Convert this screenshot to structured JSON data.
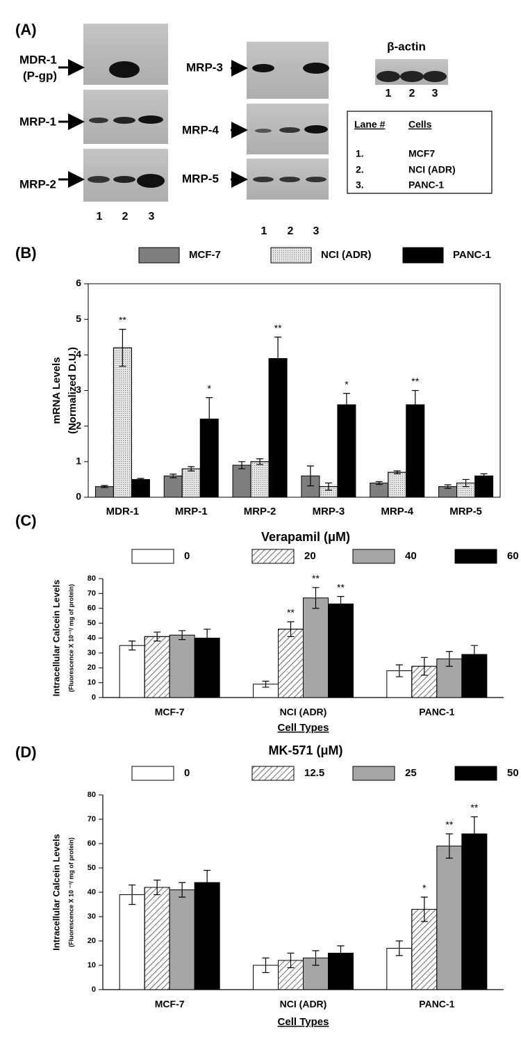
{
  "gel": {
    "panel_label": "(A)",
    "genes": [
      {
        "label": "MDR-1",
        "sublabel": "(P-gp)"
      },
      {
        "label": "MRP-1"
      },
      {
        "label": "MRP-2"
      },
      {
        "label": "MRP-3"
      },
      {
        "label": "MRP-4"
      },
      {
        "label": "MRP-5"
      }
    ],
    "lanes": [
      "1",
      "2",
      "3"
    ],
    "loading_control": "β-actin",
    "legend": {
      "headers": [
        "Lane #",
        "Cells"
      ],
      "rows": [
        [
          "1.",
          "MCF7"
        ],
        [
          "2.",
          "NCI (ADR)"
        ],
        [
          "3.",
          "PANC-1"
        ]
      ]
    }
  },
  "chart_data": [
    {
      "type": "bar",
      "panel_label": "(B)",
      "ylabel": [
        "mRNA Levels",
        "(Normalized  D.U.)"
      ],
      "categories": [
        "MDR-1",
        "MRP-1",
        "MRP-2",
        "MRP-3",
        "MRP-4",
        "MRP-5"
      ],
      "series": [
        {
          "name": "MCF-7",
          "color": "#7f7f7f",
          "values": [
            0.3,
            0.6,
            0.9,
            0.6,
            0.4,
            0.3
          ],
          "errors": [
            0.03,
            0.05,
            0.1,
            0.28,
            0.04,
            0.05
          ],
          "significance": [
            null,
            null,
            null,
            null,
            null,
            null
          ]
        },
        {
          "name": "NCI (ADR)",
          "color": "#e4e4e4",
          "pattern": "dots",
          "values": [
            4.2,
            0.8,
            1.0,
            0.3,
            0.7,
            0.4
          ],
          "errors": [
            0.52,
            0.06,
            0.08,
            0.1,
            0.04,
            0.1
          ],
          "significance": [
            "**",
            null,
            null,
            null,
            null,
            null
          ]
        },
        {
          "name": "PANC-1",
          "color": "#000000",
          "values": [
            0.5,
            2.2,
            3.9,
            2.6,
            2.6,
            0.6
          ],
          "errors": [
            0.03,
            0.6,
            0.6,
            0.32,
            0.4,
            0.06
          ],
          "significance": [
            null,
            "*",
            "**",
            "*",
            "**",
            null
          ]
        }
      ],
      "ylim": [
        0,
        6
      ],
      "yticks": [
        0,
        1,
        2,
        3,
        4,
        5,
        6
      ],
      "frame": true
    },
    {
      "type": "bar",
      "panel_label": "(C)",
      "legend_title": "Verapamil  (μM)",
      "ylabel": [
        "Intracellular  Calcein  Levels",
        "(Fluorescence X 10⁻³/ mg of protein)"
      ],
      "xlabel": "Cell Types",
      "categories": [
        "MCF-7",
        "NCI (ADR)",
        "PANC-1"
      ],
      "series": [
        {
          "name": "0",
          "color": "#ffffff",
          "values": [
            35,
            9,
            18
          ],
          "errors": [
            3,
            2,
            4
          ],
          "significance": [
            null,
            null,
            null
          ]
        },
        {
          "name": "20",
          "color": "#ffffff",
          "pattern": "hatch",
          "values": [
            41,
            46,
            21
          ],
          "errors": [
            3,
            5,
            6
          ],
          "significance": [
            null,
            "**",
            null
          ]
        },
        {
          "name": "40",
          "color": "#a6a6a6",
          "values": [
            42,
            67,
            26
          ],
          "errors": [
            3,
            7,
            5
          ],
          "significance": [
            null,
            "**",
            null
          ]
        },
        {
          "name": "60",
          "color": "#000000",
          "values": [
            40,
            63,
            29
          ],
          "errors": [
            6,
            5,
            6
          ],
          "significance": [
            null,
            "**",
            null
          ]
        }
      ],
      "ylim": [
        0,
        80
      ],
      "yticks": [
        0,
        10,
        20,
        30,
        40,
        50,
        60,
        70,
        80
      ],
      "frame": false
    },
    {
      "type": "bar",
      "panel_label": "(D)",
      "legend_title": "MK-571  (μM)",
      "ylabel": [
        "Intracellular Calcein Levels",
        "(Fluorescence X 10 ⁻³/ mg of protein)"
      ],
      "xlabel": "Cell Types",
      "categories": [
        "MCF-7",
        "NCI (ADR)",
        "PANC-1"
      ],
      "series": [
        {
          "name": "0",
          "color": "#ffffff",
          "values": [
            39,
            10,
            17
          ],
          "errors": [
            4,
            3,
            3
          ],
          "significance": [
            null,
            null,
            null
          ]
        },
        {
          "name": "12.5",
          "color": "#ffffff",
          "pattern": "hatch",
          "values": [
            42,
            12,
            33
          ],
          "errors": [
            3,
            3,
            5
          ],
          "significance": [
            null,
            null,
            "*"
          ]
        },
        {
          "name": "25",
          "color": "#a6a6a6",
          "values": [
            41,
            13,
            59
          ],
          "errors": [
            3,
            3,
            5
          ],
          "significance": [
            null,
            null,
            "**"
          ]
        },
        {
          "name": "50",
          "color": "#000000",
          "values": [
            44,
            15,
            64
          ],
          "errors": [
            5,
            3,
            7
          ],
          "significance": [
            null,
            null,
            "**"
          ]
        }
      ],
      "ylim": [
        0,
        80
      ],
      "yticks": [
        0,
        10,
        20,
        30,
        40,
        50,
        60,
        70,
        80
      ],
      "frame": false
    }
  ]
}
